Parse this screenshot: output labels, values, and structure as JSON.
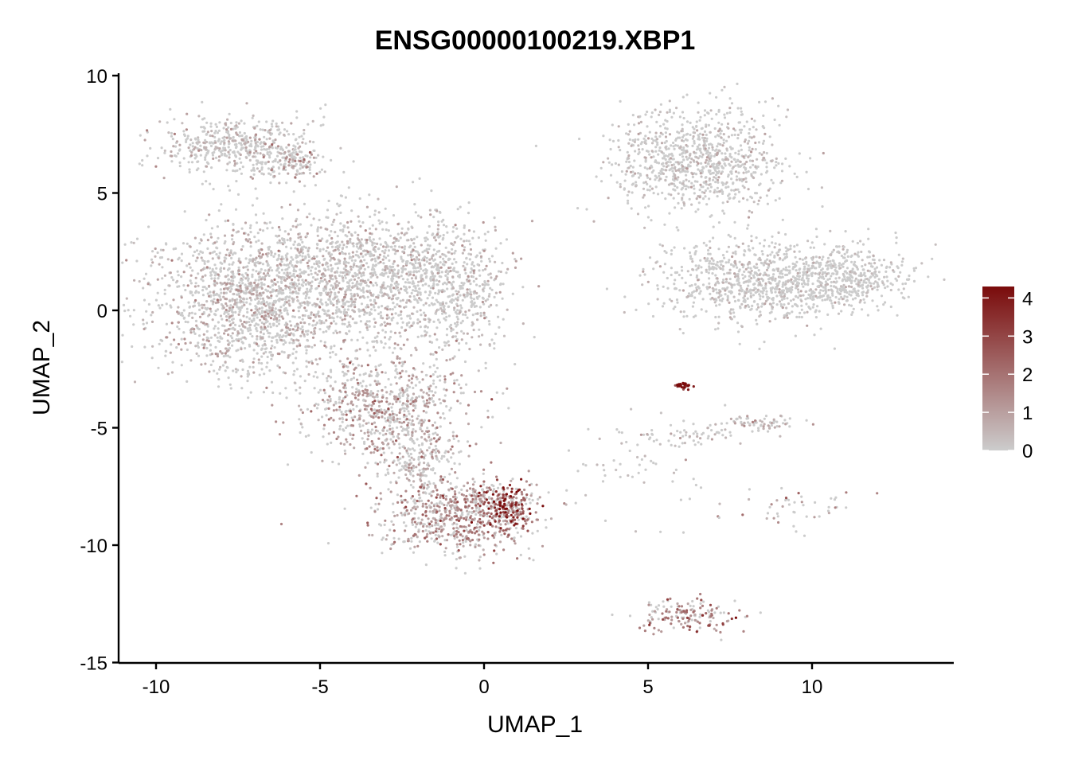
{
  "chart_data": {
    "type": "scatter",
    "title": "ENSG00000100219.XBP1",
    "xlabel": "UMAP_1",
    "ylabel": "UMAP_2",
    "xlim": [
      -11,
      14
    ],
    "ylim": [
      -15,
      10
    ],
    "xticks": [
      -10,
      -5,
      0,
      5,
      10
    ],
    "yticks": [
      -15,
      -10,
      -5,
      0,
      5,
      10
    ],
    "grid": false,
    "colors": {
      "low": "#cccccc",
      "high": "#7a0b0b"
    },
    "legend": {
      "placement": "right",
      "min": 0,
      "max": 4.3,
      "ticks": [
        0,
        1,
        2,
        3,
        4
      ]
    },
    "clusters": [
      {
        "region": "top-left arm",
        "center": [
          -7.5,
          7.0
        ],
        "spread": [
          1.2,
          0.6
        ],
        "n": 500,
        "expr_mean": 0.5
      },
      {
        "region": "top-left arm tip",
        "center": [
          -5.8,
          6.2
        ],
        "spread": [
          0.5,
          0.35
        ],
        "n": 120,
        "expr_mean": 0.8
      },
      {
        "region": "left body",
        "center": [
          -7.0,
          0.5
        ],
        "spread": [
          1.5,
          1.6
        ],
        "n": 1600,
        "expr_mean": 0.6
      },
      {
        "region": "mid body",
        "center": [
          -3.5,
          1.5
        ],
        "spread": [
          1.5,
          1.4
        ],
        "n": 1100,
        "expr_mean": 0.5
      },
      {
        "region": "right shoulder",
        "center": [
          -1.0,
          1.0
        ],
        "spread": [
          0.9,
          1.5
        ],
        "n": 500,
        "expr_mean": 0.5
      },
      {
        "region": "lower stem",
        "center": [
          -3.0,
          -4.2
        ],
        "spread": [
          1.2,
          1.1
        ],
        "n": 700,
        "expr_mean": 0.9
      },
      {
        "region": "neck",
        "center": [
          -2.0,
          -6.5
        ],
        "spread": [
          0.6,
          0.8
        ],
        "n": 200,
        "expr_mean": 0.7
      },
      {
        "region": "bottom lobe",
        "center": [
          -0.8,
          -8.8
        ],
        "spread": [
          1.2,
          0.8
        ],
        "n": 700,
        "expr_mean": 1.1
      },
      {
        "region": "bottom lobe hotspot",
        "center": [
          0.7,
          -8.4
        ],
        "spread": [
          0.4,
          0.5
        ],
        "n": 180,
        "expr_mean": 2.2
      },
      {
        "region": "top-right blob",
        "center": [
          6.5,
          6.3
        ],
        "spread": [
          1.3,
          1.1
        ],
        "n": 900,
        "expr_mean": 0.4
      },
      {
        "region": "right body",
        "center": [
          8.3,
          1.2
        ],
        "spread": [
          1.5,
          0.9
        ],
        "n": 800,
        "expr_mean": 0.35
      },
      {
        "region": "right tail",
        "center": [
          11.0,
          1.4
        ],
        "spread": [
          1.0,
          0.7
        ],
        "n": 450,
        "expr_mean": 0.3
      },
      {
        "region": "small dense cluster",
        "center": [
          6.1,
          -3.2
        ],
        "spread": [
          0.15,
          0.08
        ],
        "n": 30,
        "expr_mean": 3.5
      },
      {
        "region": "right streak",
        "center": [
          8.3,
          -4.8
        ],
        "spread": [
          0.6,
          0.15
        ],
        "n": 70,
        "expr_mean": 0.6
      },
      {
        "region": "center streak",
        "center": [
          6.0,
          -5.3
        ],
        "spread": [
          1.2,
          0.25
        ],
        "n": 60,
        "expr_mean": 0.5
      },
      {
        "region": "lower streak",
        "center": [
          9.5,
          -8.3
        ],
        "spread": [
          1.0,
          0.4
        ],
        "n": 45,
        "expr_mean": 0.9
      },
      {
        "region": "scatter middle",
        "center": [
          5.0,
          -6.8
        ],
        "spread": [
          1.2,
          1.3
        ],
        "n": 60,
        "expr_mean": 0.4
      },
      {
        "region": "bottom arc",
        "center": [
          6.2,
          -13.0
        ],
        "spread": [
          0.8,
          0.35
        ],
        "n": 160,
        "expr_mean": 1.3
      }
    ]
  }
}
